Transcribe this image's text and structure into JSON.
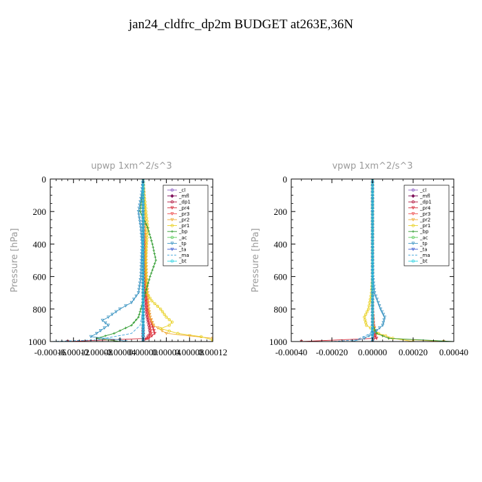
{
  "figure": {
    "title": "jan24_cldfrc_dp2m  BUDGET at263E,36N"
  },
  "legend_entries": [
    {
      "name": "_cl",
      "color": "#8a5cc2",
      "marker": "circle"
    },
    {
      "name": "_mfl",
      "color": "#7f0f5a",
      "marker": "diamond"
    },
    {
      "name": "_dp1",
      "color": "#b0103a",
      "marker": "circle"
    },
    {
      "name": "_pr4",
      "color": "#d42030",
      "marker": "tri"
    },
    {
      "name": "_pr3",
      "color": "#ee4a4a",
      "marker": "tri"
    },
    {
      "name": "_pr2",
      "color": "#f0a830",
      "marker": "tri"
    },
    {
      "name": "_pr1",
      "color": "#e8d020",
      "marker": "circle"
    },
    {
      "name": "_bp",
      "color": "#2c9a2c",
      "marker": "cross"
    },
    {
      "name": "_ac",
      "color": "#5ccc5c",
      "marker": "circle"
    },
    {
      "name": "_tp",
      "color": "#3a94c2",
      "marker": "tri"
    },
    {
      "name": "_ta",
      "color": "#3a5ad2",
      "marker": "tri"
    },
    {
      "name": "_ma",
      "color": "#3aa0d8",
      "marker": "line"
    },
    {
      "name": "_bt",
      "color": "#2ad2e0",
      "marker": "circle"
    }
  ],
  "chart_data": [
    {
      "type": "line",
      "title": "upwp   1xm^2/s^3",
      "xlabel": "",
      "ylabel": "Pressure [hPa]",
      "xlim": [
        -0.00016,
        0.00012
      ],
      "ylim": [
        1000,
        0
      ],
      "x_ticks": [
        -0.00016,
        -0.00012,
        -8e-05,
        -4e-05,
        0.0,
        4e-05,
        8e-05,
        0.00012
      ],
      "x_tick_labels": [
        "-0.00016",
        "-0.00012",
        "-0.00008",
        "-0.00004",
        "0.00000",
        "0.00004",
        "0.00008",
        "0.00012"
      ],
      "y_ticks": [
        0,
        200,
        400,
        600,
        800,
        1000
      ],
      "y_tick_labels": [
        "0",
        "200",
        "400",
        "600",
        "800",
        "1000"
      ],
      "legend_position": "top-right",
      "series": [
        {
          "name": "_cl",
          "p": [
            0,
            200,
            400,
            600,
            800,
            900,
            950,
            1000
          ],
          "x": [
            0,
            0,
            0,
            0,
            0,
            0,
            0,
            0
          ]
        },
        {
          "name": "_mfl",
          "p": [
            0,
            200,
            400,
            600,
            800,
            900,
            950,
            1000
          ],
          "x": [
            0,
            0,
            0,
            0,
            0,
            0,
            0,
            0
          ]
        },
        {
          "name": "_dp1",
          "p": [
            0,
            200,
            400,
            600,
            700,
            800,
            850,
            900,
            950,
            980,
            1000
          ],
          "x": [
            0,
            0,
            0,
            2e-06,
            3e-06,
            5e-06,
            7e-06,
            1e-05,
            1.2e-05,
            6e-06,
            0
          ]
        },
        {
          "name": "_pr4",
          "p": [
            0,
            200,
            400,
            600,
            700,
            800,
            850,
            900,
            950,
            980,
            1000
          ],
          "x": [
            0,
            0,
            3e-06,
            4e-06,
            6e-06,
            8e-06,
            1.2e-05,
            1.6e-05,
            2e-05,
            1e-05,
            -0.00013
          ]
        },
        {
          "name": "_pr3",
          "p": [
            0,
            200,
            400,
            600,
            700,
            800,
            850,
            900,
            950,
            980,
            1000
          ],
          "x": [
            0,
            0,
            2e-06,
            3e-06,
            5e-06,
            6e-06,
            9e-06,
            1.2e-05,
            1.4e-05,
            8e-06,
            0
          ]
        },
        {
          "name": "_pr2",
          "p": [
            0,
            200,
            400,
            600,
            700,
            800,
            850,
            900,
            950,
            980,
            1000
          ],
          "x": [
            0,
            3e-06,
            5e-06,
            6e-06,
            8e-06,
            1e-05,
            1.2e-05,
            1.8e-05,
            4e-05,
            0.00012,
            0.00012
          ]
        },
        {
          "name": "_pr1",
          "p": [
            0,
            100,
            200,
            300,
            400,
            500,
            600,
            700,
            750,
            800,
            850,
            880,
            900,
            920,
            950,
            970,
            990,
            1000
          ],
          "x": [
            0,
            2e-06,
            5e-06,
            8e-06,
            6e-06,
            4e-06,
            5e-06,
            6e-06,
            1.5e-05,
            3e-05,
            4e-05,
            5e-05,
            4.5e-05,
            3e-05,
            6e-05,
            0.0001,
            0.00012,
            0.00012
          ]
        },
        {
          "name": "_bp",
          "p": [
            0,
            100,
            200,
            300,
            400,
            500,
            600,
            700,
            800,
            850,
            900,
            950,
            980,
            1000
          ],
          "x": [
            0,
            -2e-06,
            -5e-06,
            8e-06,
            1.6e-05,
            2.2e-05,
            1.2e-05,
            4e-06,
            -4e-06,
            -8e-06,
            -2e-05,
            -5e-05,
            -8e-05,
            -4e-05
          ]
        },
        {
          "name": "_ac",
          "p": [
            0,
            200,
            400,
            600,
            800,
            1000
          ],
          "x": [
            0,
            0,
            0,
            0,
            0,
            0
          ]
        },
        {
          "name": "_tp",
          "p": [
            0,
            100,
            200,
            300,
            400,
            500,
            600,
            700,
            760,
            800,
            850,
            870,
            900,
            950,
            970,
            990,
            1000
          ],
          "x": [
            0,
            -3e-06,
            -8e-06,
            -4e-06,
            -2e-06,
            -3e-06,
            -4e-06,
            -8e-06,
            -2e-05,
            -4e-05,
            -6e-05,
            -7e-05,
            -6e-05,
            -8e-05,
            -9e-05,
            -4e-05,
            -3e-05
          ]
        },
        {
          "name": "_ta",
          "p": [
            0,
            200,
            400,
            600,
            800,
            900,
            950,
            1000
          ],
          "x": [
            0,
            0,
            0,
            0,
            0,
            0,
            0,
            0
          ]
        },
        {
          "name": "_ma",
          "p": [
            0,
            200,
            400,
            600,
            800,
            900,
            950,
            990,
            1000
          ],
          "x": [
            0,
            0,
            0,
            0,
            0,
            -5e-06,
            -2e-05,
            -8e-05,
            -0.00016
          ]
        },
        {
          "name": "_bt",
          "p": [
            0,
            200,
            400,
            600,
            800,
            1000
          ],
          "x": [
            0,
            0,
            0,
            0,
            0,
            0
          ]
        }
      ]
    },
    {
      "type": "line",
      "title": "vpwp   1xm^2/s^3",
      "xlabel": "",
      "ylabel": "Pressure [hPa]",
      "xlim": [
        -0.0004,
        0.0004
      ],
      "ylim": [
        1000,
        0
      ],
      "x_ticks": [
        -0.0004,
        -0.0002,
        0.0,
        0.0002,
        0.0004
      ],
      "x_tick_labels": [
        "-0.00040",
        "-0.00020",
        "0.00000",
        "0.00020",
        "0.00040"
      ],
      "y_ticks": [
        0,
        200,
        400,
        600,
        800,
        1000
      ],
      "y_tick_labels": [
        "0",
        "200",
        "400",
        "600",
        "800",
        "1000"
      ],
      "legend_position": "top-right",
      "series": [
        {
          "name": "_cl",
          "p": [
            0,
            200,
            400,
            600,
            800,
            1000
          ],
          "x": [
            0,
            0,
            0,
            0,
            0,
            0
          ]
        },
        {
          "name": "_mfl",
          "p": [
            0,
            200,
            400,
            600,
            800,
            1000
          ],
          "x": [
            0,
            0,
            0,
            0,
            0,
            0
          ]
        },
        {
          "name": "_dp1",
          "p": [
            0,
            200,
            400,
            600,
            800,
            900,
            950,
            1000
          ],
          "x": [
            0,
            0,
            0,
            0,
            0,
            5e-06,
            1e-05,
            0
          ]
        },
        {
          "name": "_pr4",
          "p": [
            0,
            200,
            400,
            600,
            800,
            900,
            950,
            980,
            1000
          ],
          "x": [
            0,
            0,
            0,
            0,
            0,
            5e-06,
            1e-05,
            2e-05,
            -0.00035
          ]
        },
        {
          "name": "_pr3",
          "p": [
            0,
            200,
            400,
            600,
            800,
            900,
            950,
            1000
          ],
          "x": [
            0,
            0,
            0,
            0,
            0,
            5e-06,
            1e-05,
            0
          ]
        },
        {
          "name": "_pr2",
          "p": [
            0,
            200,
            400,
            600,
            800,
            900,
            950,
            980,
            1000
          ],
          "x": [
            0,
            0,
            0,
            0,
            0,
            5e-06,
            2e-05,
            8e-05,
            0.00035
          ]
        },
        {
          "name": "_pr1",
          "p": [
            0,
            200,
            400,
            600,
            700,
            800,
            850,
            900,
            950,
            980,
            1000
          ],
          "x": [
            0,
            0,
            0,
            0,
            -5e-06,
            -2e-05,
            -4e-05,
            -3e-05,
            3e-05,
            0.0001,
            0.0002
          ]
        },
        {
          "name": "_bp",
          "p": [
            0,
            200,
            400,
            600,
            800,
            900,
            950,
            980,
            1000
          ],
          "x": [
            0,
            0,
            0,
            0,
            0,
            0,
            2e-05,
            8e-05,
            0.0004
          ]
        },
        {
          "name": "_ac",
          "p": [
            0,
            200,
            400,
            600,
            800,
            1000
          ],
          "x": [
            0,
            0,
            0,
            0,
            0,
            0
          ]
        },
        {
          "name": "_tp",
          "p": [
            0,
            200,
            400,
            600,
            700,
            800,
            850,
            900,
            950,
            980,
            1000
          ],
          "x": [
            0,
            0,
            0,
            2e-06,
            1e-05,
            4e-05,
            6e-05,
            5e-05,
            5e-06,
            -4e-05,
            -0.0001
          ]
        },
        {
          "name": "_ta",
          "p": [
            0,
            200,
            400,
            600,
            800,
            1000
          ],
          "x": [
            0,
            0,
            0,
            0,
            0,
            0
          ]
        },
        {
          "name": "_ma",
          "p": [
            0,
            200,
            400,
            600,
            800,
            900,
            950,
            990,
            1000
          ],
          "x": [
            0,
            0,
            0,
            0,
            0,
            0,
            -1e-05,
            -8e-05,
            -0.0002
          ]
        },
        {
          "name": "_bt",
          "p": [
            0,
            200,
            400,
            600,
            800,
            1000
          ],
          "x": [
            0,
            0,
            0,
            0,
            0,
            0
          ]
        }
      ]
    }
  ]
}
